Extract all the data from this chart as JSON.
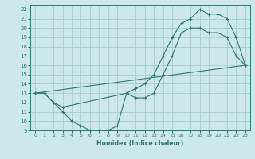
{
  "xlabel": "Humidex (Indice chaleur)",
  "bg_color": "#cce8e8",
  "grid_color": "#aacccc",
  "line_color": "#2a7a6a",
  "xlim": [
    -0.5,
    23.5
  ],
  "ylim": [
    9,
    22.5
  ],
  "xticks": [
    0,
    1,
    2,
    3,
    4,
    5,
    6,
    7,
    8,
    9,
    10,
    11,
    12,
    13,
    14,
    15,
    16,
    17,
    18,
    19,
    20,
    21,
    22,
    23
  ],
  "yticks": [
    9,
    10,
    11,
    12,
    13,
    14,
    15,
    16,
    17,
    18,
    19,
    20,
    21,
    22
  ],
  "line1_x": [
    0,
    1,
    2,
    3,
    10,
    11,
    12,
    13,
    14,
    15,
    16,
    17,
    18,
    19,
    20,
    21,
    22,
    23
  ],
  "line1_y": [
    13,
    13,
    12,
    11.5,
    13,
    13.5,
    14,
    15,
    17,
    19,
    20.5,
    21,
    22,
    21.5,
    21.5,
    21,
    19,
    16
  ],
  "line2_x": [
    0,
    1,
    2,
    3,
    4,
    5,
    6,
    7,
    8,
    9,
    10,
    11,
    12,
    13,
    14,
    15,
    16,
    17,
    18,
    19,
    20,
    21,
    22,
    23
  ],
  "line2_y": [
    13,
    13,
    12,
    11,
    10,
    9.5,
    9,
    9,
    9,
    9.5,
    13,
    12.5,
    12.5,
    13,
    15,
    17,
    19.5,
    20,
    20,
    19.5,
    19.5,
    19,
    17,
    16
  ],
  "line3_x": [
    0,
    23
  ],
  "line3_y": [
    13,
    16
  ]
}
